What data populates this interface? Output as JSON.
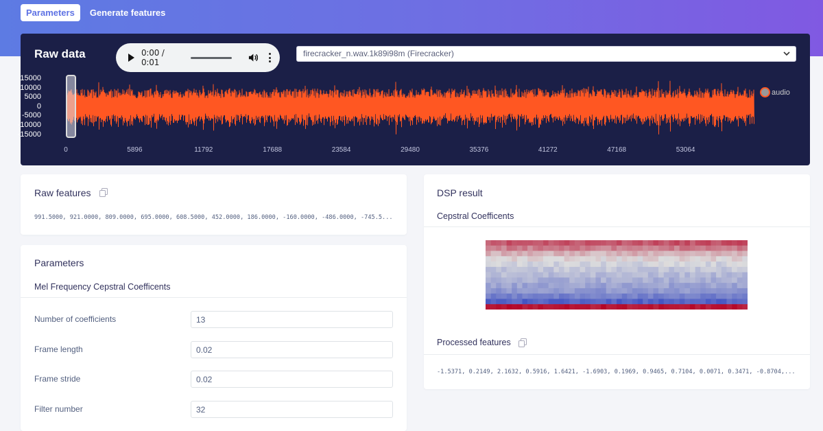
{
  "tabs": [
    {
      "label": "Parameters",
      "active": true
    },
    {
      "label": "Generate features",
      "active": false
    }
  ],
  "raw_data": {
    "title": "Raw data",
    "audio": {
      "time": "0:00 / 0:01"
    },
    "sample_select": {
      "value": "firecracker_n.wav.1k89i98m (Firecracker)"
    },
    "legend": {
      "label": "audio",
      "color": "#ff5722"
    }
  },
  "chart_data": {
    "type": "line",
    "series": [
      {
        "name": "audio",
        "color": "#ff5722"
      }
    ],
    "yticks": [
      "15000",
      "10000",
      "5000",
      "0",
      "-5000",
      "-10000",
      "-15000"
    ],
    "xticks": [
      "0",
      "5896",
      "11792",
      "17688",
      "23584",
      "29480",
      "35376",
      "41272",
      "47168",
      "53064"
    ],
    "ylim": [
      -15000,
      15000
    ],
    "xlim": [
      0,
      58960
    ]
  },
  "raw_features": {
    "title": "Raw features",
    "values": "991.5000, 921.0000, 809.0000, 695.0000, 608.5000, 452.0000, 186.0000, -160.0000, -486.0000, -745.5..."
  },
  "parameters": {
    "title": "Parameters",
    "section": "Mel Frequency Cepstral Coefficents",
    "fields": [
      {
        "label": "Number of coefficients",
        "value": "13"
      },
      {
        "label": "Frame length",
        "value": "0.02"
      },
      {
        "label": "Frame stride",
        "value": "0.02"
      },
      {
        "label": "Filter number",
        "value": "32"
      }
    ]
  },
  "dsp_result": {
    "title": "DSP result",
    "cepstral_title": "Cepstral Coefficents",
    "processed_title": "Processed features",
    "processed_values": "-1.5371, 0.2149, 2.1632, 0.5916, 1.6421, -1.6903, 0.1969, 0.9465, 0.7104, 0.0071, 0.3471, -0.8704,..."
  }
}
